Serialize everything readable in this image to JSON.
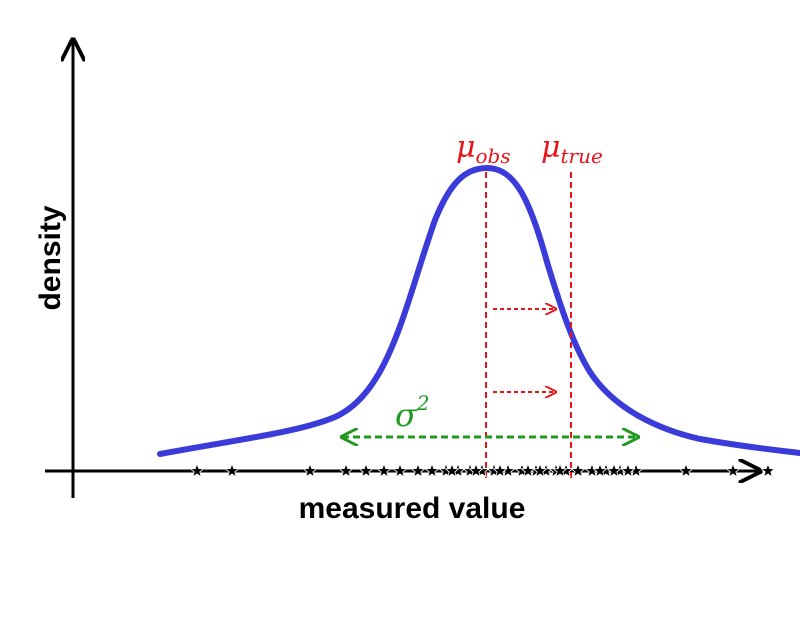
{
  "axes": {
    "x_label": "measured value",
    "y_label": "density"
  },
  "annotations": {
    "mu_obs": {
      "symbol": "μ",
      "subscript": "obs",
      "color": "#e8141b"
    },
    "mu_true": {
      "symbol": "μ",
      "subscript": "true",
      "color": "#e8141b"
    },
    "variance": {
      "symbol": "σ",
      "superscript": "2",
      "color": "#1e9a1e"
    }
  },
  "curve": {
    "color": "#3b3bd9"
  },
  "samples_count": 37
}
